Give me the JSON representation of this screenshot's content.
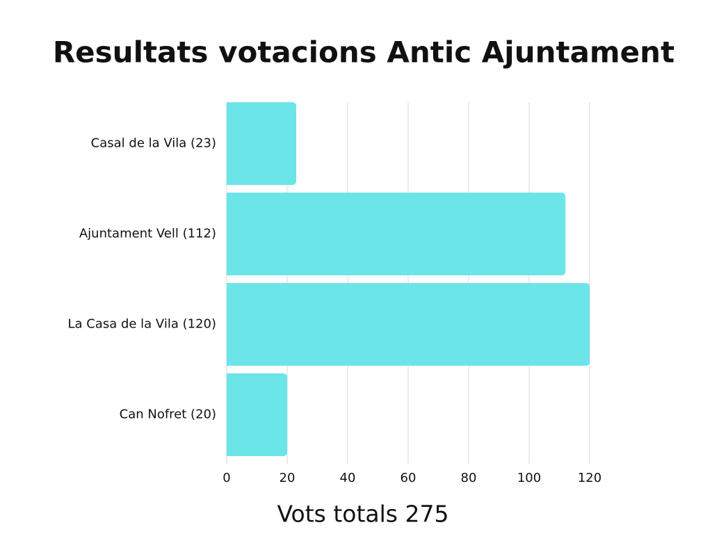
{
  "chart_data": {
    "type": "bar",
    "orientation": "horizontal",
    "title": "Resultats votacions Antic Ajuntament",
    "x_label": "Vots totals 275",
    "categories": [
      "Casal de la Vila (23)",
      "Ajuntament Vell (112)",
      "La Casa de la Vila (120)",
      "Can Nofret (20)"
    ],
    "values": [
      23,
      112,
      120,
      20
    ],
    "color": "#6ce5e8",
    "xlim": [
      0,
      120
    ],
    "xticks": [
      0,
      20,
      40,
      60,
      80,
      100,
      120
    ],
    "grid": true
  }
}
